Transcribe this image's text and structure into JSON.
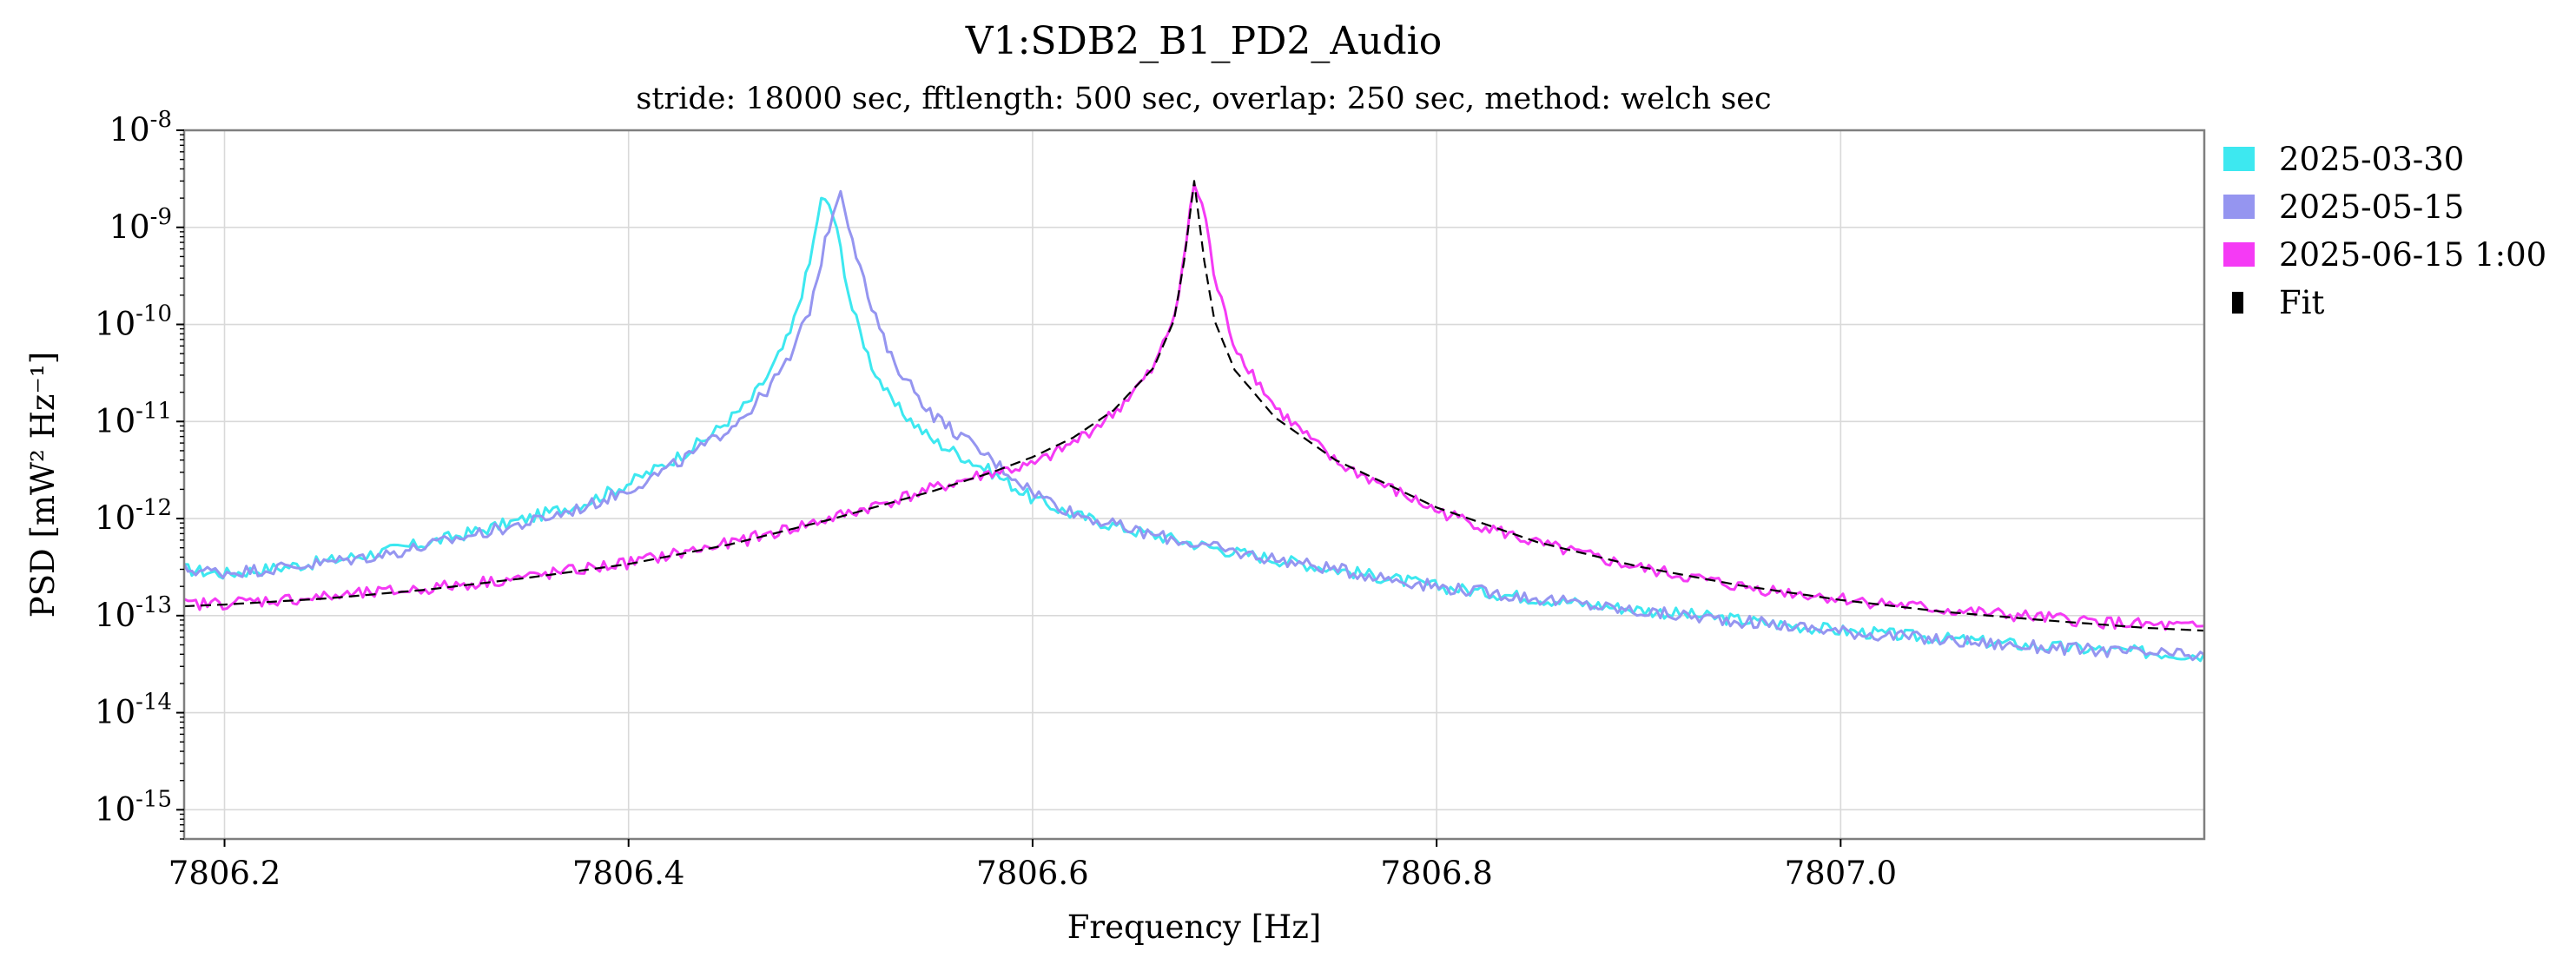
{
  "chart_data": {
    "type": "line",
    "title": "V1:SDB2_B1_PD2_Audio",
    "subtitle": "stride: 18000 sec, fftlength: 500 sec, overlap: 250 sec, method: welch sec",
    "xlabel": "Frequency [Hz]",
    "ylabel": "PSD [mW² Hz⁻¹]",
    "xlim": [
      7806.18,
      7807.18
    ],
    "ylim": [
      5e-16,
      1e-08
    ],
    "yscale": "log",
    "grid": true,
    "legend_position": "outside-right-top",
    "x_ticks": [
      7806.2,
      7806.4,
      7806.6,
      7806.8,
      7807.0
    ],
    "x_tick_labels": [
      "7806.2",
      "7806.4",
      "7806.6",
      "7806.8",
      "7807.0"
    ],
    "y_ticks": [
      {
        "value": 1e-15,
        "base": "10",
        "exp": "-15"
      },
      {
        "value": 1e-14,
        "base": "10",
        "exp": "-14"
      },
      {
        "value": 1e-13,
        "base": "10",
        "exp": "-13"
      },
      {
        "value": 1e-12,
        "base": "10",
        "exp": "-12"
      },
      {
        "value": 1e-11,
        "base": "10",
        "exp": "-11"
      },
      {
        "value": 1e-10,
        "base": "10",
        "exp": "-10"
      },
      {
        "value": 1e-09,
        "base": "10",
        "exp": "-9"
      },
      {
        "value": 1e-08,
        "base": "10",
        "exp": "-8"
      }
    ],
    "series": [
      {
        "name": "2025-03-30",
        "color": "#3de8f0",
        "style": "solid",
        "x": [
          7806.18,
          7806.2,
          7806.22,
          7806.25,
          7806.28,
          7806.3,
          7806.32,
          7806.35,
          7806.38,
          7806.4,
          7806.42,
          7806.44,
          7806.46,
          7806.47,
          7806.48,
          7806.49,
          7806.495,
          7806.5,
          7806.505,
          7806.51,
          7806.52,
          7806.53,
          7806.55,
          7806.58,
          7806.6,
          7806.62,
          7806.65,
          7806.7,
          7806.75,
          7806.8,
          7806.85,
          7806.9,
          7806.95,
          7807.0,
          7807.05,
          7807.1,
          7807.15,
          7807.18
        ],
        "y": [
          3e-13,
          2.7e-13,
          3e-13,
          3.6e-13,
          4.6e-13,
          5.6e-13,
          7e-13,
          1e-12,
          1.5e-12,
          2.3e-12,
          3.8e-12,
          7e-12,
          1.6e-11,
          3.2e-11,
          8e-11,
          4.5e-10,
          1.9e-09,
          1.7e-09,
          6e-10,
          1.6e-10,
          4e-11,
          1.6e-11,
          6.5e-12,
          3e-12,
          1.6e-12,
          1.1e-12,
          7.5e-13,
          4.5e-13,
          3e-13,
          2e-13,
          1.5e-13,
          1.15e-13,
          9e-14,
          7e-14,
          5.8e-14,
          4.8e-14,
          4.2e-14,
          3.9e-14
        ]
      },
      {
        "name": "2025-05-15",
        "color": "#9595f0",
        "style": "solid",
        "x": [
          7806.18,
          7806.2,
          7806.22,
          7806.25,
          7806.28,
          7806.3,
          7806.32,
          7806.35,
          7806.38,
          7806.4,
          7806.42,
          7806.44,
          7806.46,
          7806.47,
          7806.48,
          7806.49,
          7806.5,
          7806.505,
          7806.51,
          7806.52,
          7806.53,
          7806.55,
          7806.58,
          7806.6,
          7806.62,
          7806.65,
          7806.7,
          7806.75,
          7806.8,
          7806.85,
          7806.9,
          7806.95,
          7807.0,
          7807.05,
          7807.1,
          7807.15,
          7807.18
        ],
        "y": [
          3e-13,
          2.8e-13,
          3e-13,
          3.5e-13,
          4.3e-13,
          5.2e-13,
          6.6e-13,
          9e-13,
          1.35e-12,
          2e-12,
          3.3e-12,
          6e-12,
          1.3e-11,
          2.3e-11,
          4.5e-11,
          1.5e-10,
          1.2e-09,
          2.5e-09,
          9e-10,
          1.5e-10,
          4.5e-11,
          1.2e-11,
          4e-12,
          1.9e-12,
          1.15e-12,
          7.5e-13,
          4.5e-13,
          3e-13,
          2e-13,
          1.5e-13,
          1.1e-13,
          8.8e-14,
          6.9e-14,
          5.6e-14,
          4.7e-14,
          4.1e-14,
          3.8e-14
        ]
      },
      {
        "name": "2025-06-15 1:00",
        "color": "#f53af5",
        "style": "solid",
        "x": [
          7806.18,
          7806.2,
          7806.25,
          7806.3,
          7806.35,
          7806.4,
          7806.45,
          7806.5,
          7806.55,
          7806.58,
          7806.6,
          7806.62,
          7806.64,
          7806.66,
          7806.67,
          7806.675,
          7806.68,
          7806.685,
          7806.69,
          7806.7,
          7806.72,
          7806.75,
          7806.8,
          7806.85,
          7806.9,
          7806.95,
          7807.0,
          7807.05,
          7807.1,
          7807.15,
          7807.18
        ],
        "y": [
          1.3e-13,
          1.35e-13,
          1.55e-13,
          1.9e-13,
          2.5e-13,
          3.5e-13,
          5.5e-13,
          1e-12,
          2e-12,
          3e-12,
          3.5e-12,
          6e-12,
          1.2e-11,
          3.5e-11,
          1.2e-10,
          5e-10,
          2.8e-09,
          1.5e-09,
          3e-10,
          6e-11,
          1.4e-11,
          3.8e-12,
          1.2e-12,
          5.5e-13,
          3.1e-13,
          2e-13,
          1.5e-13,
          1.15e-13,
          9.5e-14,
          8e-14,
          7.5e-14
        ]
      },
      {
        "name": "Fit",
        "color": "#000000",
        "style": "dashed",
        "x": [
          7806.18,
          7806.2,
          7806.25,
          7806.3,
          7806.35,
          7806.4,
          7806.45,
          7806.5,
          7806.55,
          7806.58,
          7806.6,
          7806.62,
          7806.64,
          7806.66,
          7806.67,
          7806.675,
          7806.68,
          7806.685,
          7806.69,
          7806.7,
          7806.72,
          7806.75,
          7806.8,
          7806.85,
          7806.9,
          7806.95,
          7807.0,
          7807.05,
          7807.1,
          7807.15,
          7807.18
        ],
        "y": [
          1.25e-13,
          1.3e-13,
          1.5e-13,
          1.85e-13,
          2.45e-13,
          3.4e-13,
          5.4e-13,
          9.8e-13,
          1.9e-12,
          3e-12,
          4.3e-12,
          6.8e-12,
          1.3e-11,
          3.6e-11,
          1.1e-10,
          4.5e-10,
          3e-09,
          4.5e-10,
          1.1e-10,
          3.4e-11,
          1.1e-11,
          4e-12,
          1.3e-12,
          5.7e-13,
          3.2e-13,
          2.05e-13,
          1.45e-13,
          1.1e-13,
          9e-14,
          7.5e-14,
          7e-14
        ]
      }
    ]
  }
}
